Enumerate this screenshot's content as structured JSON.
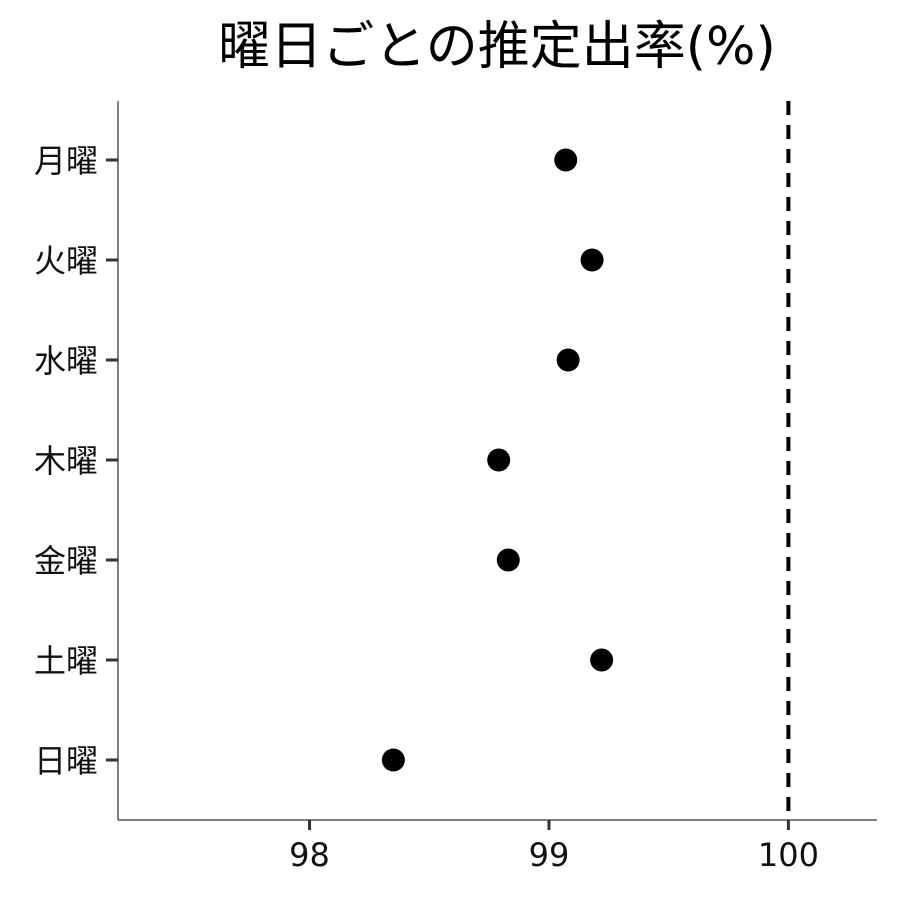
{
  "chart_data": {
    "type": "scatter",
    "title": "曜日ごとの推定出率(%)",
    "xlabel": "",
    "ylabel": "",
    "categories": [
      "月曜",
      "火曜",
      "水曜",
      "木曜",
      "金曜",
      "土曜",
      "日曜"
    ],
    "values": [
      99.07,
      99.18,
      99.08,
      98.79,
      98.83,
      99.22,
      98.35
    ],
    "xlim": [
      97.2,
      100.37
    ],
    "x_ticks": [
      98,
      99,
      100
    ],
    "x_tick_labels": [
      "98",
      "99",
      "100"
    ],
    "reference_line": {
      "x": 100,
      "style": "dashed",
      "color": "#000000"
    },
    "point_color": "#000000",
    "grid": false,
    "legend": "none"
  }
}
